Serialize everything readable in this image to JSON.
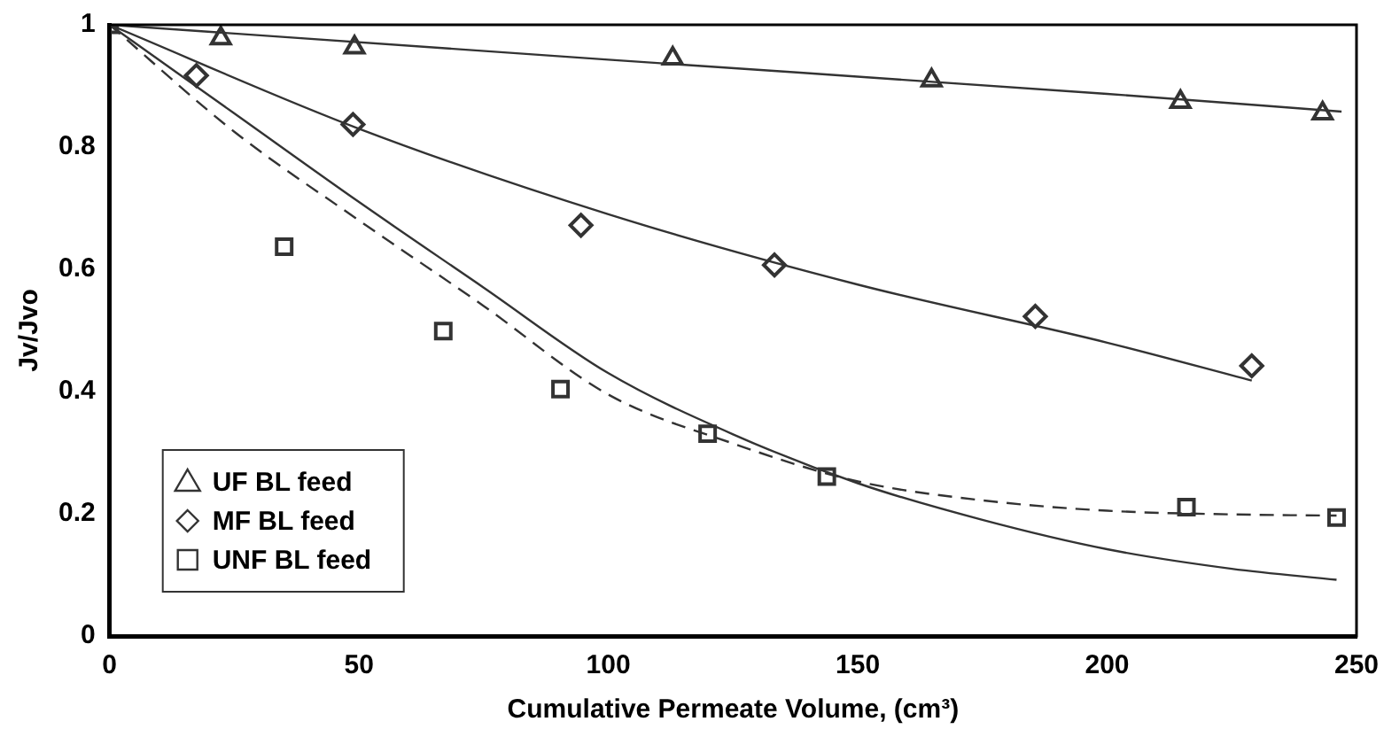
{
  "chart_data": {
    "type": "scatter",
    "xlabel": "Cumulative Permeate Volume, (cm³)",
    "ylabel": "Jv/Jvo",
    "xlim": [
      0,
      250
    ],
    "xticks": [
      0,
      50,
      100,
      150,
      200,
      250
    ],
    "ylim": [
      0,
      1
    ],
    "yticks": [
      0,
      0.2,
      0.4,
      0.6,
      0.8,
      1
    ],
    "grid": false,
    "legend": "bottom left",
    "series": [
      {
        "name": "UF BL feed",
        "color": "#333333",
        "marker": "triangle",
        "x": [
          22.3,
          49.1,
          112.9,
          164.8,
          214.7,
          243.2
        ],
        "values": [
          0.978,
          0.963,
          0.945,
          0.909,
          0.874,
          0.855
        ]
      },
      {
        "name": "MF BL feed",
        "color": "#333333",
        "marker": "diamond",
        "x": [
          17.4,
          48.8,
          94.5,
          133.3,
          185.6,
          229
        ],
        "values": [
          0.917,
          0.837,
          0.672,
          0.607,
          0.523,
          0.442
        ]
      },
      {
        "name": "UNF BL feed",
        "color": "#333333",
        "marker": "square",
        "x": [
          0,
          35,
          66.9,
          90.4,
          119.9,
          143.8,
          215.9,
          246
        ],
        "values": [
          1,
          0.637,
          0.499,
          0.404,
          0.331,
          0.261,
          0.211,
          0.194
        ]
      },
      {
        "type": "line",
        "color": "#333333",
        "marker": "none",
        "line_style": "solid",
        "x": [
          0,
          100,
          200,
          247
        ],
        "values": [
          1,
          0.943,
          0.887,
          0.858
        ]
      },
      {
        "type": "line",
        "color": "#333333",
        "marker": "none",
        "line_style": "solid",
        "x": [
          0,
          50,
          100,
          150,
          200,
          229
        ],
        "values": [
          1,
          0.83,
          0.69,
          0.575,
          0.48,
          0.418
        ]
      },
      {
        "type": "line",
        "color": "#333333",
        "marker": "none",
        "line_style": "solid",
        "x": [
          0,
          25,
          50,
          75,
          100,
          125,
          150,
          175,
          200,
          225,
          246
        ],
        "values": [
          1,
          0.855,
          0.71,
          0.57,
          0.43,
          0.33,
          0.25,
          0.19,
          0.142,
          0.11,
          0.092
        ]
      },
      {
        "type": "line",
        "color": "#333333",
        "marker": "none",
        "line_style": "dashed",
        "x": [
          0,
          25,
          50,
          75,
          100,
          125,
          150,
          175,
          200,
          225,
          246
        ],
        "values": [
          1,
          0.825,
          0.68,
          0.54,
          0.395,
          0.315,
          0.253,
          0.222,
          0.205,
          0.199,
          0.197
        ]
      }
    ]
  }
}
